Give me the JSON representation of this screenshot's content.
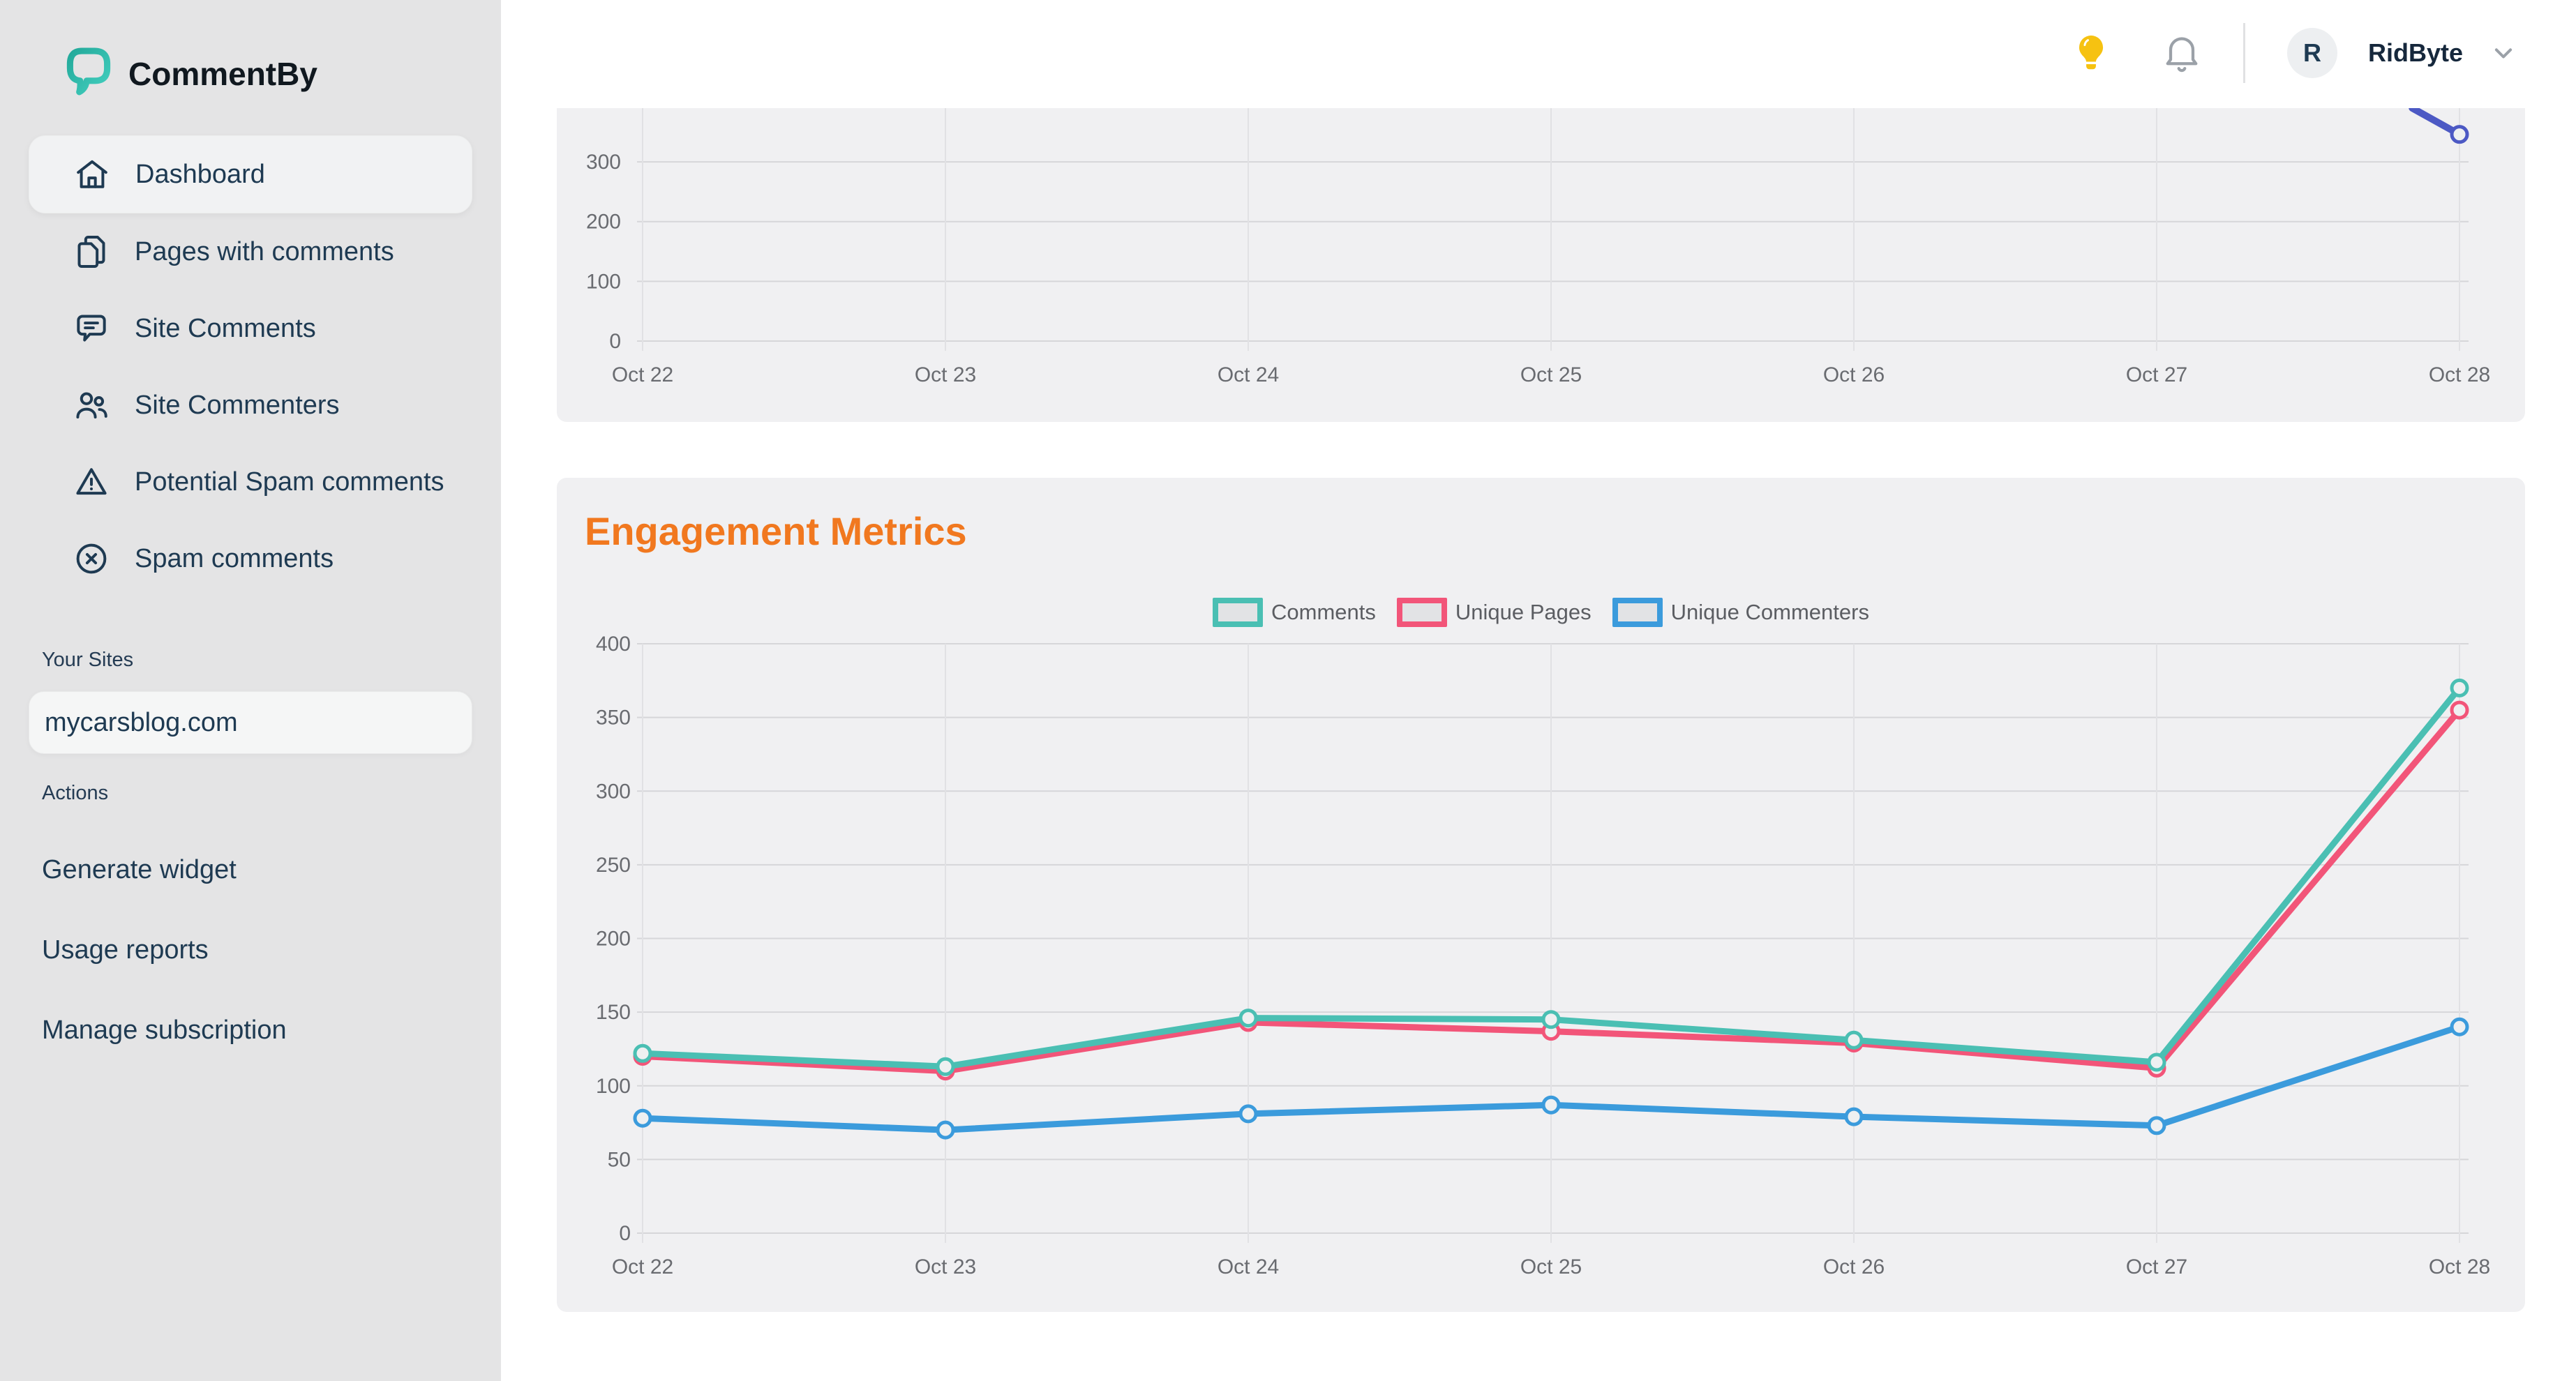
{
  "app": {
    "name": "CommentBy",
    "logo_icon": "speech-bubble-logo-icon",
    "logo_color": "#2eb6a7"
  },
  "topbar": {
    "icons": [
      "lightbulb-icon",
      "bell-icon"
    ],
    "avatar_initial": "R",
    "user_name": "RidByte",
    "chevron_icon": "chevron-down-icon",
    "lightbulb_color": "#f6c211"
  },
  "sidebar": {
    "nav": [
      {
        "label": "Dashboard",
        "icon": "home-icon",
        "active": true
      },
      {
        "label": "Pages with comments",
        "icon": "pages-icon",
        "active": false
      },
      {
        "label": "Site Comments",
        "icon": "comment-icon",
        "active": false
      },
      {
        "label": "Site Commenters",
        "icon": "users-icon",
        "active": false
      },
      {
        "label": "Potential Spam comments",
        "icon": "warning-triangle-icon",
        "active": false
      },
      {
        "label": "Spam comments",
        "icon": "x-circle-icon",
        "active": false
      }
    ],
    "sites_section": {
      "title": "Your Sites",
      "sites": [
        {
          "name": "mycarsblog.com"
        }
      ]
    },
    "actions_section": {
      "title": "Actions",
      "items": [
        {
          "label": "Generate widget"
        },
        {
          "label": "Usage reports"
        },
        {
          "label": "Manage subscription"
        }
      ]
    }
  },
  "colors": {
    "sidebar_bg": "#e4e4e5",
    "card_bg": "#f0f0f2",
    "navy_text": "#1e3a52",
    "title_orange": "#f1781f",
    "grid_h": "#d6d6d9",
    "grid_v": "#e1e1e4",
    "tick_text": "#696b70",
    "marker_fill": "#eef0f1"
  },
  "chart_data": [
    {
      "name": "top-chart-partial",
      "type": "line",
      "title": "",
      "note": "card scrolled: only bottom of chart visible; single line enters from top edge",
      "categories": [
        "Oct 22",
        "Oct 23",
        "Oct 24",
        "Oct 25",
        "Oct 26",
        "Oct 27",
        "Oct 28"
      ],
      "yticks": [
        0,
        100,
        200,
        300
      ],
      "ylim_visible": [
        0,
        390
      ],
      "grid": true,
      "series": [
        {
          "name": "visible-line",
          "color": "#4c59c4",
          "values": [
            null,
            null,
            null,
            null,
            null,
            null,
            346
          ],
          "enters_top_at_x_fraction": 0.974
        }
      ]
    },
    {
      "name": "engagement-metrics",
      "type": "line",
      "title": "Engagement Metrics",
      "categories": [
        "Oct 22",
        "Oct 23",
        "Oct 24",
        "Oct 25",
        "Oct 26",
        "Oct 27",
        "Oct 28"
      ],
      "yticks": [
        0,
        50,
        100,
        150,
        200,
        250,
        300,
        350,
        400
      ],
      "ylim": [
        0,
        400
      ],
      "grid": true,
      "legend_position": "top-center",
      "legend": [
        {
          "label": "Comments",
          "color": "#4abfb3"
        },
        {
          "label": "Unique Pages",
          "color": "#f25579"
        },
        {
          "label": "Unique Commenters",
          "color": "#3b9bdc"
        }
      ],
      "series": [
        {
          "name": "Unique Pages",
          "color": "#f25579",
          "values": [
            120,
            110,
            143,
            137,
            129,
            112,
            355
          ]
        },
        {
          "name": "Comments",
          "color": "#4abfb3",
          "values": [
            122,
            113,
            146,
            145,
            131,
            116,
            370
          ]
        },
        {
          "name": "Unique Commenters",
          "color": "#3b9bdc",
          "values": [
            78,
            70,
            81,
            87,
            79,
            73,
            140
          ]
        }
      ]
    }
  ]
}
